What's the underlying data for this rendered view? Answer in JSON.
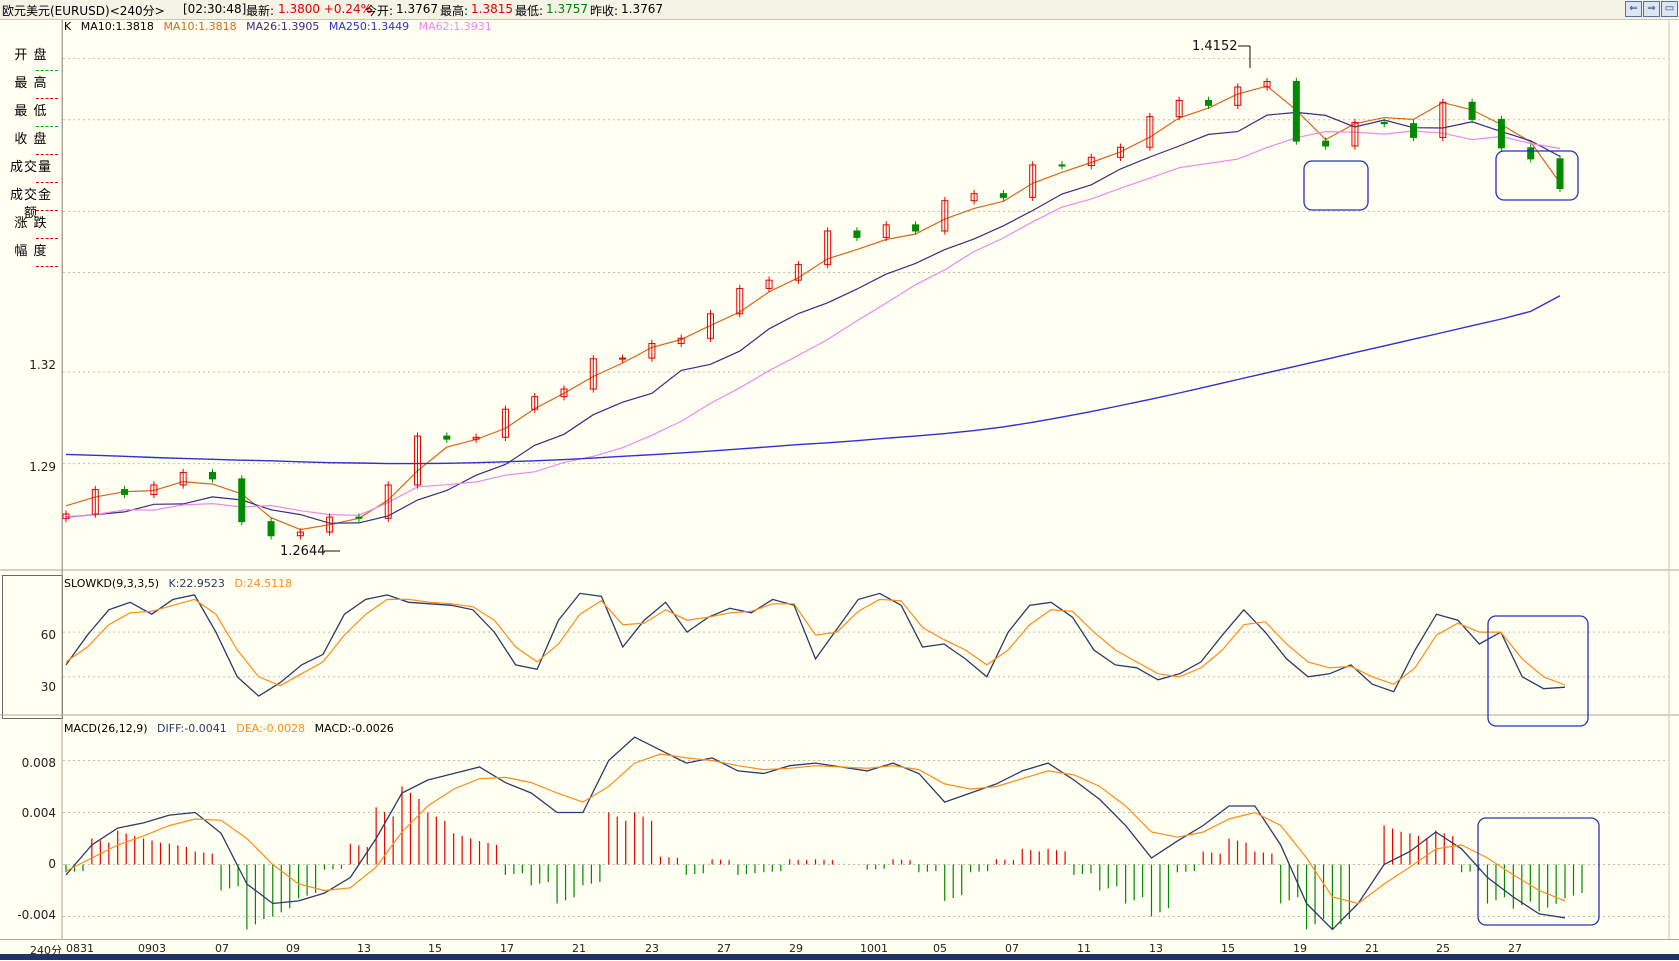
{
  "header": {
    "symbol": "欧元美元(EURUSD)<240分>",
    "time": "[02:30:48]",
    "latest_label": "最新:",
    "latest_value": "1.3800 +0.24%",
    "open_label": "今开:",
    "open_value": "1.3767",
    "high_label": "最高:",
    "high_value": "1.3815",
    "low_label": "最低:",
    "low_value": "1.3757",
    "prev_label": "昨收:",
    "prev_value": "1.3767"
  },
  "nav_buttons": [
    "⇐",
    "⇒",
    "▭"
  ],
  "side_panel": [
    "开 盘",
    "最 高",
    "最 低",
    "收 盘",
    "成交量",
    "成交金额",
    "涨 跌",
    "幅 度"
  ],
  "main_panel": {
    "header": {
      "k": "K",
      "ma10": "MA10:1.3818",
      "ma10b": "MA10:1.3818",
      "ma26": "MA26:1.3905",
      "ma250": "MA250:1.3449",
      "ma62": "MA62:1.3931"
    },
    "y_labels": [
      "1.32",
      "1.29"
    ],
    "annotations": {
      "high": "1.4152",
      "low": "1.2644"
    }
  },
  "kd_panel": {
    "header": {
      "name": "SLOWKD(9,3,3,5)",
      "k": "K:22.9523",
      "d": "D:24.5118"
    },
    "y_labels": [
      "60",
      "30"
    ]
  },
  "macd_panel": {
    "header": {
      "name": "MACD(26,12,9)",
      "diff": "DIFF:-0.0041",
      "dea": "DEA:-0.0028",
      "macd": "MACD:-0.0026"
    },
    "y_labels": [
      "0.008",
      "0.004",
      "0",
      "-0.004"
    ]
  },
  "x_axis": {
    "period": "240分",
    "labels": [
      "0831",
      "0903",
      "07",
      "09",
      "13",
      "15",
      "17",
      "21",
      "23",
      "27",
      "29",
      "1001",
      "05",
      "07",
      "11",
      "13",
      "15",
      "19",
      "21",
      "25",
      "27"
    ]
  },
  "colors": {
    "up": "#e60000",
    "down": "#008a00",
    "ma10": "#d2691e",
    "ma26": "#3a2a8a",
    "ma62": "#ee88ee",
    "ma250": "#3030d0",
    "k_line": "#2b3a6b",
    "d_line": "#ff8c1a",
    "box": "#2233bb"
  },
  "chart_data": [
    {
      "type": "candlestick",
      "title": "",
      "ylim": [
        1.2565,
        1.4325
      ],
      "y_ticks": [
        1.32,
        1.29
      ],
      "grid": true,
      "series": [
        {
          "name": "MA10",
          "values": [
            1.2762,
            1.2791,
            1.2808,
            1.2812,
            1.2841,
            1.2833,
            1.2801,
            1.2723,
            1.2684,
            1.27,
            1.2721,
            1.2781,
            1.2876,
            1.2954,
            1.2979,
            1.3015,
            1.308,
            1.313,
            1.3185,
            1.3229,
            1.328,
            1.3306,
            1.3352,
            1.3396,
            1.3462,
            1.3508,
            1.357,
            1.36,
            1.3633,
            1.3651,
            1.37,
            1.3735,
            1.3758,
            1.3817,
            1.3853,
            1.3885,
            1.392,
            1.3968,
            1.4031,
            1.4063,
            1.4109,
            1.4135,
            1.4056,
            1.396,
            1.4012,
            1.4032,
            1.4026,
            1.4081,
            1.4057,
            1.4009,
            1.3952,
            1.3818
          ]
        },
        {
          "name": "MA26",
          "values": [
            1.2725,
            1.2733,
            1.2742,
            1.2767,
            1.2768,
            1.2791,
            1.2781,
            1.2749,
            1.2733,
            1.2705,
            1.2706,
            1.2729,
            1.2781,
            1.2812,
            1.2862,
            1.2897,
            1.296,
            1.2996,
            1.306,
            1.3101,
            1.313,
            1.3205,
            1.3225,
            1.3268,
            1.3341,
            1.3391,
            1.3426,
            1.3471,
            1.352,
            1.3555,
            1.36,
            1.3635,
            1.3678,
            1.3728,
            1.3782,
            1.3812,
            1.3864,
            1.3903,
            1.3939,
            1.3977,
            1.3986,
            1.404,
            1.4049,
            1.4039,
            1.4001,
            1.4024,
            1.3999,
            1.3998,
            1.4018,
            1.3986,
            1.3956,
            1.3905
          ]
        },
        {
          "name": "MA62",
          "values": [
            1.2726,
            1.2733,
            1.2749,
            1.2748,
            1.2765,
            1.2769,
            1.2758,
            1.2763,
            1.2746,
            1.2733,
            1.2731,
            1.2773,
            1.2824,
            1.2831,
            1.284,
            1.2862,
            1.2873,
            1.2904,
            1.2924,
            1.2952,
            1.2993,
            1.3038,
            1.3097,
            1.3148,
            1.3204,
            1.3254,
            1.3306,
            1.3367,
            1.3425,
            1.3485,
            1.3534,
            1.3594,
            1.3638,
            1.3691,
            1.3739,
            1.3766,
            1.3801,
            1.3834,
            1.3868,
            1.3882,
            1.3896,
            1.3934,
            1.3966,
            1.3986,
            1.3984,
            1.3978,
            1.3988,
            1.3981,
            1.396,
            1.397,
            1.3947,
            1.3931
          ]
        },
        {
          "name": "MA250",
          "values": [
            1.293,
            1.2927,
            1.2924,
            1.292,
            1.2917,
            1.2914,
            1.2911,
            1.2909,
            1.2906,
            1.2903,
            1.2902,
            1.29,
            1.29,
            1.2901,
            1.2903,
            1.2906,
            1.2909,
            1.2913,
            1.2918,
            1.2924,
            1.2929,
            1.2935,
            1.2941,
            1.2948,
            1.2955,
            1.2962,
            1.2968,
            1.2975,
            1.2983,
            1.299,
            1.2998,
            1.3008,
            1.302,
            1.3035,
            1.3052,
            1.307,
            1.309,
            1.311,
            1.3131,
            1.3153,
            1.3175,
            1.3197,
            1.3219,
            1.3241,
            1.3263,
            1.3285,
            1.3307,
            1.3329,
            1.3351,
            1.3373,
            1.3398,
            1.3449
          ]
        }
      ],
      "candles_close": [
        1.2735,
        1.2815,
        1.2799,
        1.283,
        1.2871,
        1.285,
        1.271,
        1.2664,
        1.2676,
        1.2725,
        1.2721,
        1.283,
        1.299,
        1.298,
        1.2986,
        1.3078,
        1.3119,
        1.3144,
        1.3243,
        1.3245,
        1.3293,
        1.331,
        1.339,
        1.3473,
        1.35,
        1.3551,
        1.3661,
        1.364,
        1.3681,
        1.3661,
        1.376,
        1.3783,
        1.3771,
        1.3877,
        1.3875,
        1.3902,
        1.3935,
        1.4035,
        1.4088,
        1.4072,
        1.4132,
        1.415,
        1.3955,
        1.3939,
        1.4016,
        1.4012,
        1.3967,
        1.4082,
        1.4026,
        1.3933,
        1.3897,
        1.38
      ],
      "annotations": [
        {
          "text": "1.4152",
          "y": 1.4152
        },
        {
          "text": "1.2644",
          "y": 1.2644
        }
      ]
    },
    {
      "type": "line",
      "title": "",
      "ylim": [
        5,
        95
      ],
      "y_ticks": [
        60,
        30
      ],
      "series": [
        {
          "name": "K",
          "values": [
            38,
            58,
            75,
            80,
            72,
            82,
            85,
            60,
            30,
            17,
            26,
            38,
            45,
            72,
            82,
            85,
            80,
            79,
            78,
            75,
            60,
            38,
            35,
            68,
            86,
            84,
            50,
            68,
            80,
            60,
            70,
            76,
            73,
            82,
            78,
            42,
            62,
            82,
            86,
            78,
            50,
            52,
            42,
            30,
            60,
            78,
            80,
            70,
            48,
            38,
            36,
            28,
            32,
            40,
            58,
            75,
            60,
            42,
            30,
            32,
            38,
            25,
            20,
            48,
            72,
            68,
            52,
            60,
            30,
            22,
            23
          ]
        },
        {
          "name": "D",
          "values": [
            40,
            50,
            65,
            73,
            74,
            78,
            82,
            72,
            48,
            30,
            24,
            32,
            40,
            58,
            72,
            82,
            82,
            80,
            79,
            77,
            68,
            50,
            40,
            52,
            72,
            81,
            65,
            66,
            75,
            68,
            70,
            73,
            74,
            79,
            79,
            58,
            60,
            74,
            82,
            81,
            63,
            55,
            48,
            38,
            48,
            65,
            75,
            74,
            60,
            48,
            40,
            32,
            30,
            36,
            48,
            65,
            67,
            52,
            40,
            36,
            37,
            30,
            25,
            36,
            58,
            66,
            60,
            60,
            42,
            30,
            24.5
          ]
        }
      ]
    },
    {
      "type": "bar",
      "title": "",
      "ylim": [
        -0.0055,
        0.0105
      ],
      "y_ticks": [
        0.008,
        0.004,
        0,
        -0.004
      ],
      "series": [
        {
          "name": "DIFF",
          "values": [
            -0.0008,
            0.0015,
            0.0028,
            0.0032,
            0.0038,
            0.004,
            0.0024,
            -0.0015,
            -0.003,
            -0.0028,
            -0.0022,
            -0.001,
            0.002,
            0.0055,
            0.0065,
            0.007,
            0.0075,
            0.0063,
            0.0055,
            0.004,
            0.004,
            0.008,
            0.0098,
            0.0088,
            0.0078,
            0.0082,
            0.0072,
            0.007,
            0.0076,
            0.0078,
            0.0075,
            0.0072,
            0.0078,
            0.007,
            0.0048,
            0.0055,
            0.0062,
            0.0072,
            0.0078,
            0.0065,
            0.005,
            0.003,
            0.0005,
            0.0018,
            0.003,
            0.0045,
            0.0045,
            0.0015,
            -0.003,
            -0.005,
            -0.003,
            0.0,
            0.001,
            0.0025,
            0.0012,
            -0.001,
            -0.0025,
            -0.0038,
            -0.0041
          ]
        },
        {
          "name": "DEA",
          "values": [
            -0.0005,
            0.0005,
            0.0015,
            0.0022,
            0.003,
            0.0035,
            0.0034,
            0.002,
            0.0,
            -0.0015,
            -0.002,
            -0.0018,
            -0.0002,
            0.0025,
            0.0045,
            0.0058,
            0.0066,
            0.0067,
            0.0063,
            0.0055,
            0.0048,
            0.006,
            0.0078,
            0.0085,
            0.0082,
            0.008,
            0.0076,
            0.0073,
            0.0074,
            0.0076,
            0.0075,
            0.0074,
            0.0076,
            0.0073,
            0.0062,
            0.0058,
            0.006,
            0.0066,
            0.0072,
            0.0069,
            0.006,
            0.0045,
            0.0025,
            0.0021,
            0.0025,
            0.0035,
            0.004,
            0.003,
            0.0005,
            -0.0025,
            -0.003,
            -0.0015,
            -0.0002,
            0.0012,
            0.0015,
            0.0005,
            -0.0008,
            -0.002,
            -0.0028
          ]
        },
        {
          "name": "MACD",
          "values": [
            -0.0006,
            0.002,
            0.0026,
            0.002,
            0.0016,
            0.001,
            -0.002,
            -0.005,
            -0.004,
            -0.0026,
            -0.0004,
            0.0016,
            0.0044,
            0.006,
            0.004,
            0.0024,
            0.0018,
            -0.0008,
            -0.0016,
            -0.003,
            -0.0016,
            0.004,
            0.004,
            0.0006,
            -0.0008,
            0.0004,
            -0.0008,
            -0.0006,
            0.0004,
            0.0004,
            0.0,
            -0.0004,
            0.0004,
            -0.0006,
            -0.0028,
            -0.0006,
            0.0004,
            0.0012,
            0.0012,
            -0.0008,
            -0.002,
            -0.003,
            -0.004,
            -0.0006,
            0.001,
            0.002,
            0.001,
            -0.003,
            -0.005,
            -0.005,
            0.0,
            0.003,
            0.0024,
            0.0026,
            -0.0006,
            -0.003,
            -0.0034,
            -0.0036,
            -0.0026
          ]
        }
      ]
    }
  ]
}
